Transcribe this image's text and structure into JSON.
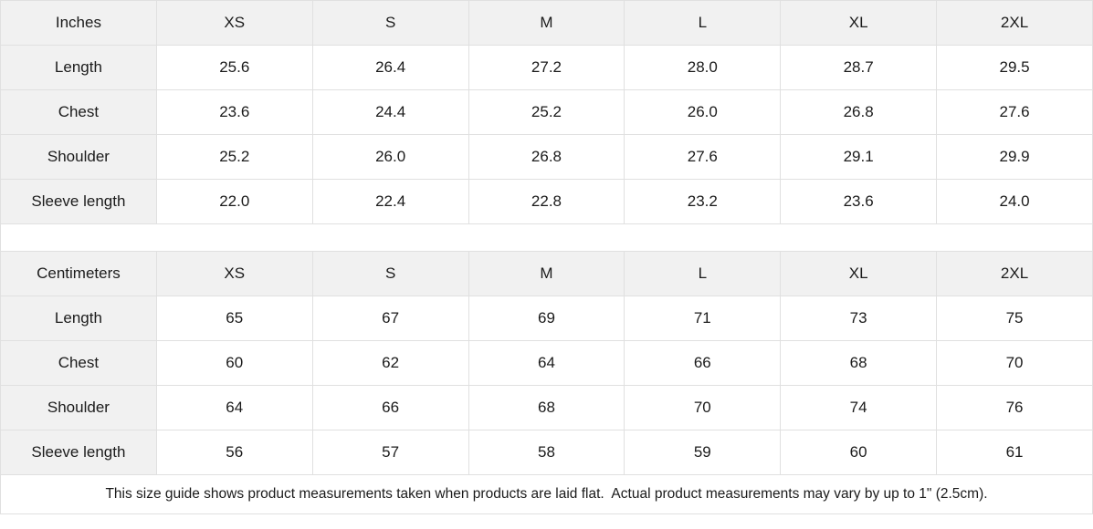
{
  "chart_data": [
    {
      "type": "table",
      "title": "Inches",
      "columns": [
        "XS",
        "S",
        "M",
        "L",
        "XL",
        "2XL"
      ],
      "rows": [
        {
          "label": "Length",
          "values": [
            "25.6",
            "26.4",
            "27.2",
            "28.0",
            "28.7",
            "29.5"
          ]
        },
        {
          "label": "Chest",
          "values": [
            "23.6",
            "24.4",
            "25.2",
            "26.0",
            "26.8",
            "27.6"
          ]
        },
        {
          "label": "Shoulder",
          "values": [
            "25.2",
            "26.0",
            "26.8",
            "27.6",
            "29.1",
            "29.9"
          ]
        },
        {
          "label": "Sleeve length",
          "values": [
            "22.0",
            "22.4",
            "22.8",
            "23.2",
            "23.6",
            "24.0"
          ]
        }
      ]
    },
    {
      "type": "table",
      "title": "Centimeters",
      "columns": [
        "XS",
        "S",
        "M",
        "L",
        "XL",
        "2XL"
      ],
      "rows": [
        {
          "label": "Length",
          "values": [
            "65",
            "67",
            "69",
            "71",
            "73",
            "75"
          ]
        },
        {
          "label": "Chest",
          "values": [
            "60",
            "62",
            "64",
            "66",
            "68",
            "70"
          ]
        },
        {
          "label": "Shoulder",
          "values": [
            "64",
            "66",
            "68",
            "70",
            "74",
            "76"
          ]
        },
        {
          "label": "Sleeve length",
          "values": [
            "56",
            "57",
            "58",
            "59",
            "60",
            "61"
          ]
        }
      ]
    }
  ],
  "footnote": "This size guide shows product measurements taken when products are laid flat.  Actual product measurements may vary by up to 1\" (2.5cm).",
  "colors": {
    "header_background": "#f1f1f1",
    "border": "#e0e0e0",
    "text": "#1b1b1b",
    "background": "#ffffff"
  }
}
